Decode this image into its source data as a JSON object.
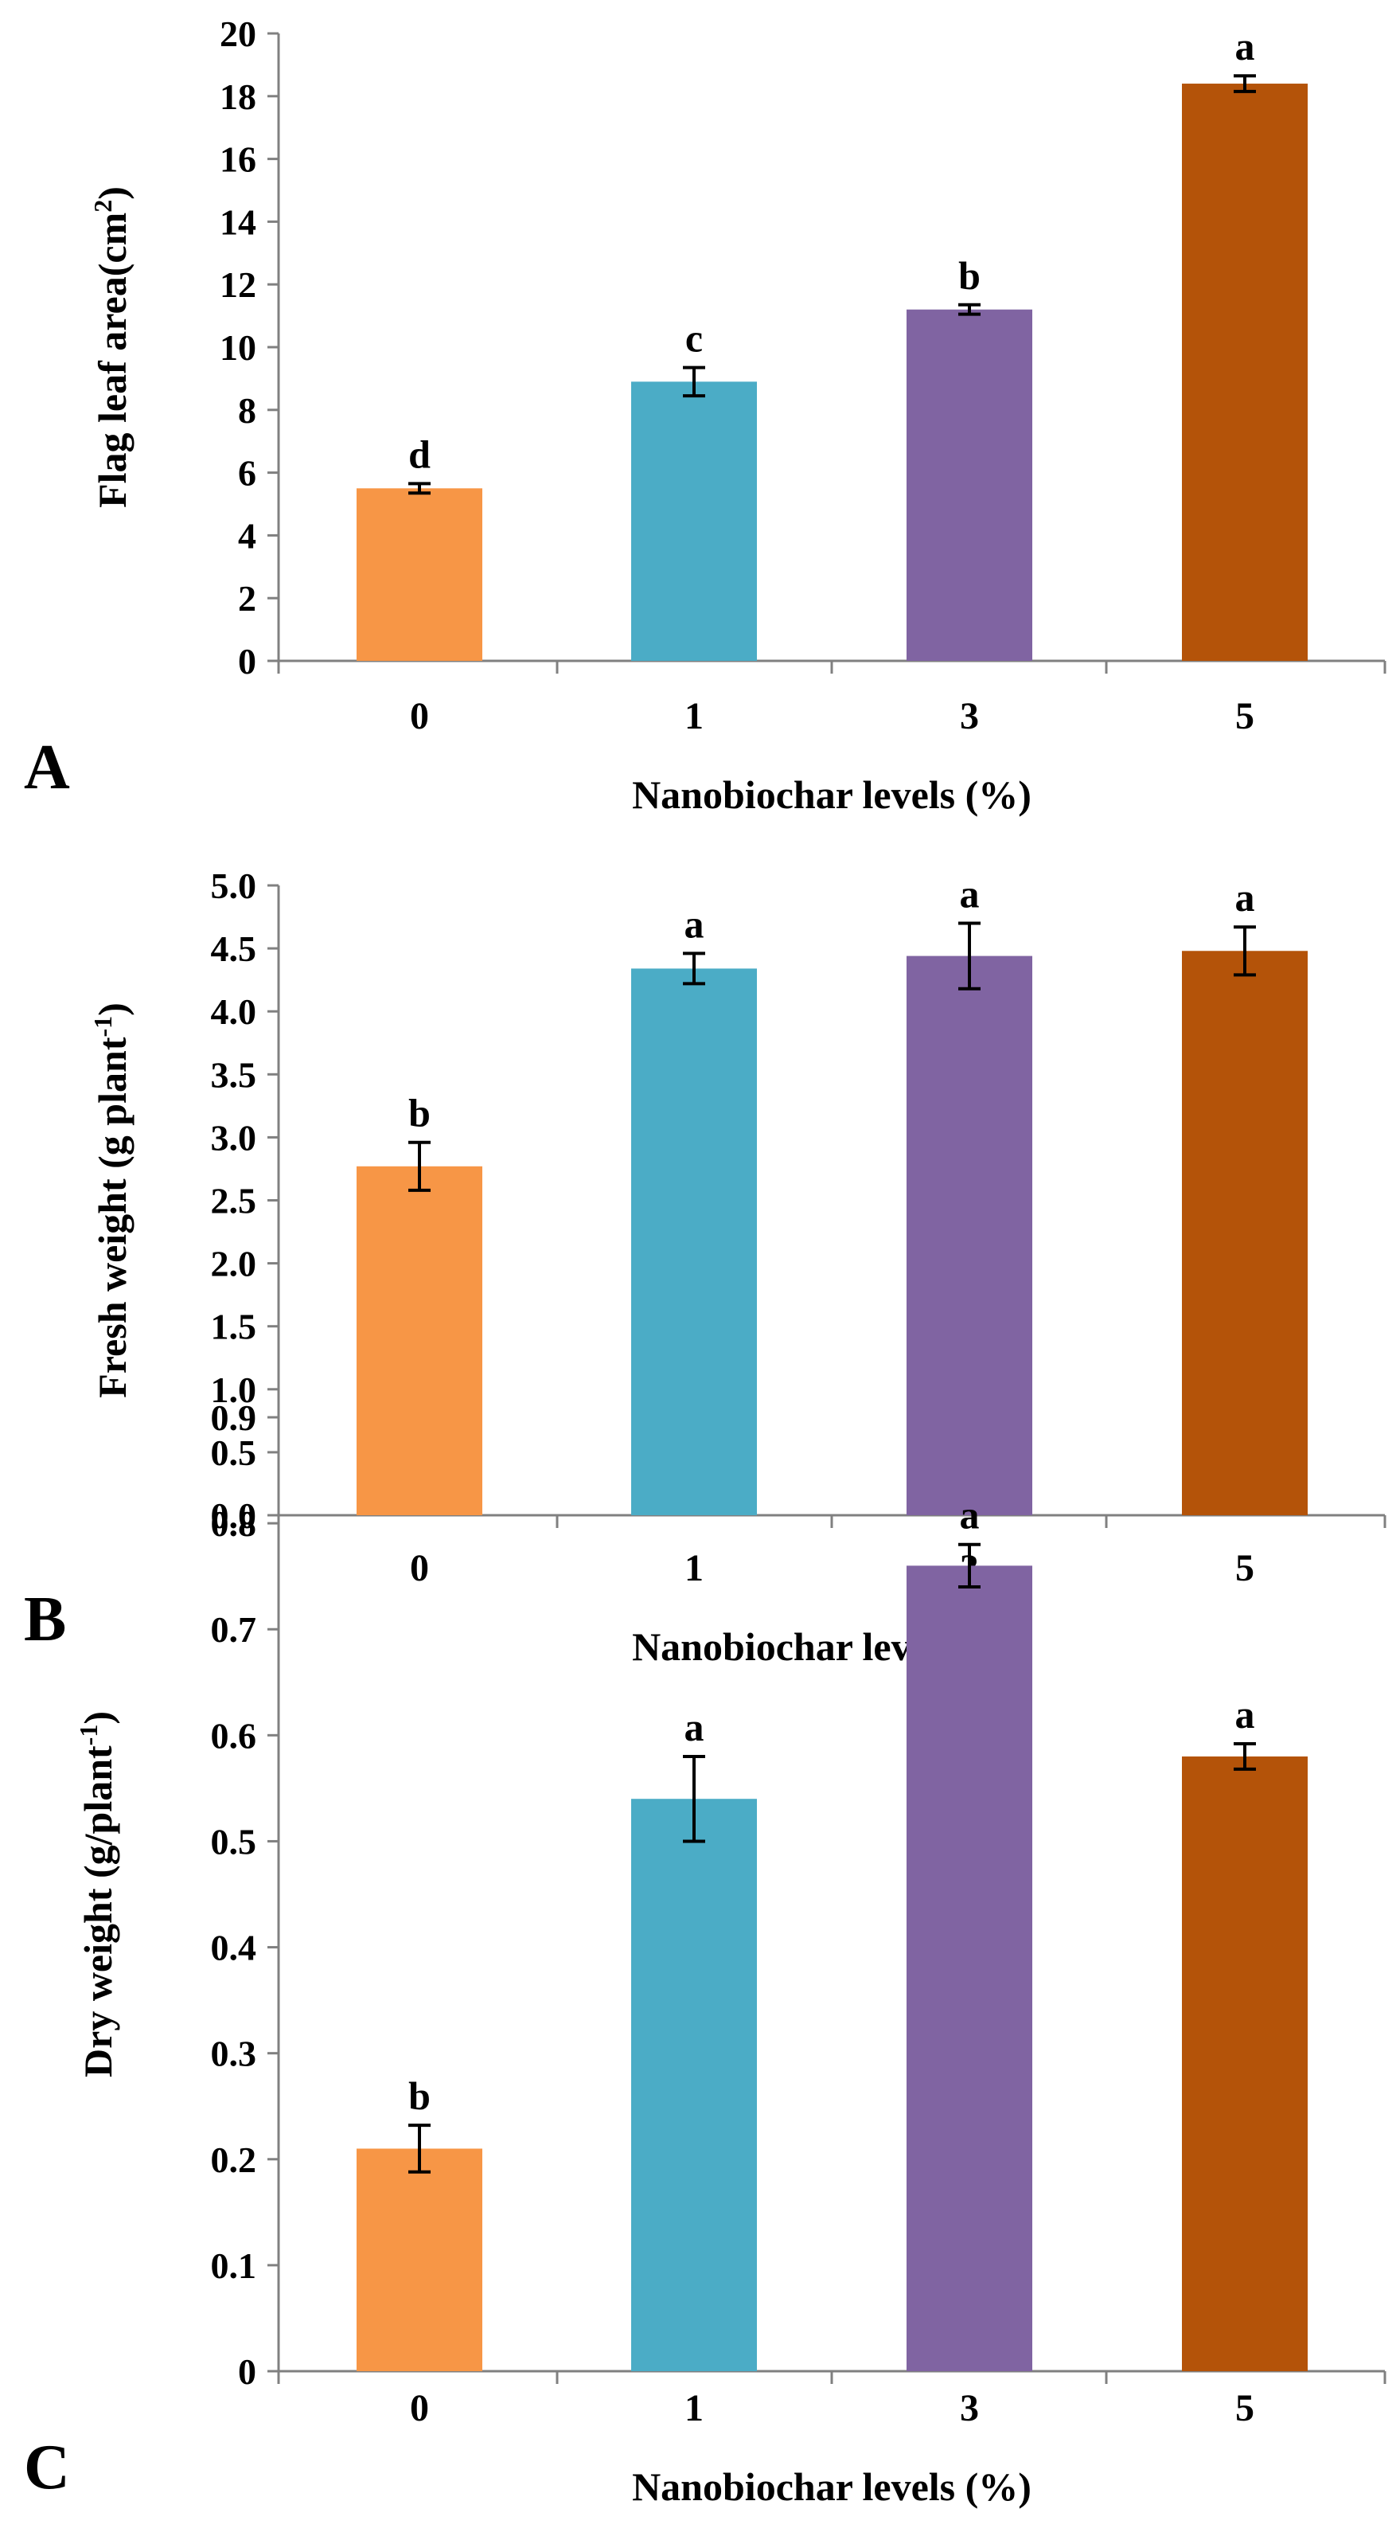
{
  "figure": {
    "panels": [
      "A",
      "B",
      "C"
    ]
  },
  "chart_data": [
    {
      "type": "bar",
      "panel": "A",
      "categories": [
        "0",
        "1",
        "3",
        "5"
      ],
      "values": [
        5.5,
        8.9,
        11.2,
        18.4
      ],
      "errors": [
        0.15,
        0.45,
        0.15,
        0.25
      ],
      "letters": [
        "d",
        "c",
        "b",
        "a"
      ],
      "colors": [
        "#F79646",
        "#4BACC6",
        "#8064A2",
        "#B45309"
      ],
      "ylabel": "Flag leaf area(cm²)",
      "ylabel_main": "Flag leaf area(cm",
      "ylabel_sup": "2",
      "ylabel_end": ")",
      "xlabel": "Nanobiochar levels (%)",
      "ylim": [
        0,
        20
      ],
      "ticks": [
        "0",
        "2",
        "4",
        "6",
        "8",
        "10",
        "12",
        "14",
        "16",
        "18",
        "20"
      ]
    },
    {
      "type": "bar",
      "panel": "B",
      "categories": [
        "0",
        "1",
        "3",
        "5"
      ],
      "values": [
        2.77,
        4.34,
        4.44,
        4.48
      ],
      "errors": [
        0.19,
        0.12,
        0.26,
        0.19
      ],
      "letters": [
        "b",
        "a",
        "a",
        "a"
      ],
      "colors": [
        "#F79646",
        "#4BACC6",
        "#8064A2",
        "#B45309"
      ],
      "ylabel": "Fresh weight (g plant⁻¹)",
      "ylabel_main": "Fresh weight (g plant",
      "ylabel_sup": "-1",
      "ylabel_end": ")",
      "xlabel": "Nanobiochar levels (%)",
      "ylim": [
        0,
        5
      ],
      "ticks": [
        "0.0",
        "0.5",
        "1.0",
        "1.5",
        "2.0",
        "2.5",
        "3.0",
        "3.5",
        "4.0",
        "4.5",
        "5.0"
      ]
    },
    {
      "type": "bar",
      "panel": "C",
      "categories": [
        "0",
        "1",
        "3",
        "5"
      ],
      "values": [
        0.21,
        0.54,
        0.76,
        0.58
      ],
      "errors": [
        0.022,
        0.04,
        0.02,
        0.012
      ],
      "letters": [
        "b",
        "a",
        "a",
        "a"
      ],
      "colors": [
        "#F79646",
        "#4BACC6",
        "#8064A2",
        "#B45309"
      ],
      "ylabel": "Dry weight (g/plant⁻¹)",
      "ylabel_main": "Dry weight (g/plant",
      "ylabel_sup": "-1",
      "ylabel_end": ")",
      "xlabel": "Nanobiochar levels (%)",
      "ylim": [
        0,
        0.9
      ],
      "ticks": [
        "0",
        "0.1",
        "0.2",
        "0.3",
        "0.4",
        "0.5",
        "0.6",
        "0.7",
        "0.8",
        "0.9"
      ]
    }
  ]
}
